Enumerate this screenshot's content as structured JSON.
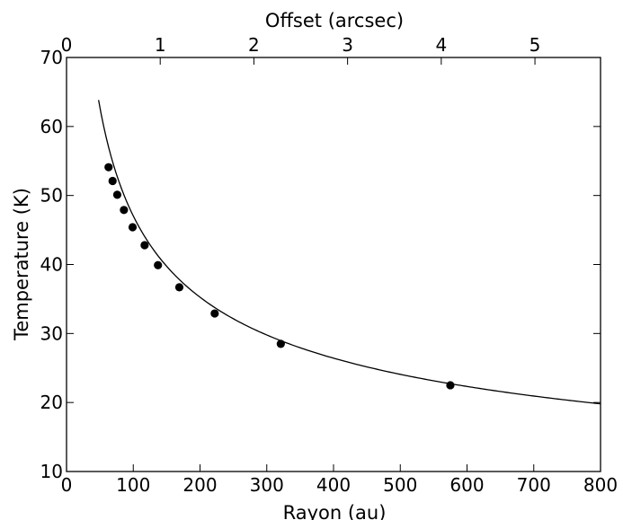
{
  "chart_data": {
    "type": "scatter",
    "title": "",
    "xlabel": "Rayon (au)",
    "ylabel": "Temperature (K)",
    "x2label": "Offset (arcsec)",
    "xlim": [
      0,
      800
    ],
    "ylim": [
      10,
      70
    ],
    "x2lim": [
      0.0,
      5.7
    ],
    "xticks": [
      0,
      100,
      200,
      300,
      400,
      500,
      600,
      700,
      800
    ],
    "yticks": [
      10,
      20,
      30,
      40,
      50,
      60,
      70
    ],
    "x2ticks": [
      0,
      1,
      2,
      3,
      4,
      5
    ],
    "grid": false,
    "legend": "none",
    "series": [
      {
        "type": "scatter",
        "color": "#000000",
        "x": [
          63,
          69,
          76,
          86,
          99,
          117,
          137,
          169,
          222,
          321,
          575
        ],
        "y": [
          54.1,
          52.1,
          50.1,
          47.9,
          45.4,
          42.8,
          39.9,
          36.7,
          32.9,
          28.5,
          22.5
        ]
      },
      {
        "type": "line",
        "color": "#000000",
        "model": "power-law",
        "amplitude": 319.5,
        "exponent": -0.416,
        "x_range": [
          48,
          800
        ]
      }
    ]
  }
}
